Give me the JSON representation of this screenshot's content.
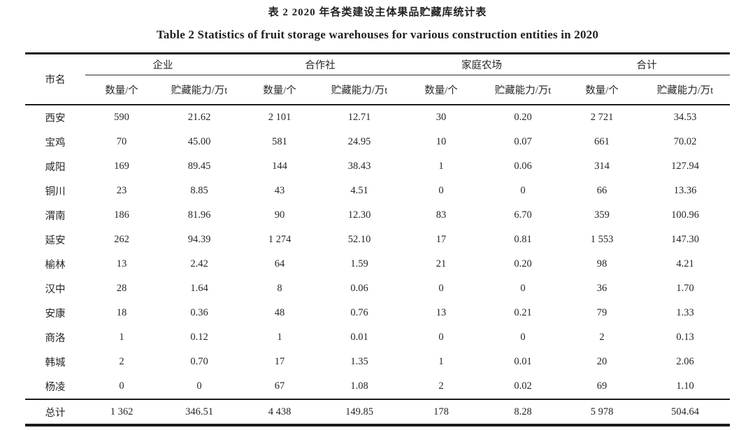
{
  "page": {
    "title_zh": "表 2 2020 年各类建设主体果品贮藏库统计表",
    "title_en": "Table 2 Statistics of fruit storage warehouses for various construction entities in 2020"
  },
  "table": {
    "city_header": "市名",
    "groups": [
      {
        "label": "企业"
      },
      {
        "label": "合作社"
      },
      {
        "label": "家庭农场"
      },
      {
        "label": "合计"
      }
    ],
    "sub_headers": [
      "数量/个",
      "贮藏能力/万t"
    ],
    "rows": [
      {
        "city": "西安",
        "values": [
          "590",
          "21.62",
          "2 101",
          "12.71",
          "30",
          "0.20",
          "2 721",
          "34.53"
        ]
      },
      {
        "city": "宝鸡",
        "values": [
          "70",
          "45.00",
          "581",
          "24.95",
          "10",
          "0.07",
          "661",
          "70.02"
        ]
      },
      {
        "city": "咸阳",
        "values": [
          "169",
          "89.45",
          "144",
          "38.43",
          "1",
          "0.06",
          "314",
          "127.94"
        ]
      },
      {
        "city": "铜川",
        "values": [
          "23",
          "8.85",
          "43",
          "4.51",
          "0",
          "0",
          "66",
          "13.36"
        ]
      },
      {
        "city": "渭南",
        "values": [
          "186",
          "81.96",
          "90",
          "12.30",
          "83",
          "6.70",
          "359",
          "100.96"
        ]
      },
      {
        "city": "延安",
        "values": [
          "262",
          "94.39",
          "1 274",
          "52.10",
          "17",
          "0.81",
          "1 553",
          "147.30"
        ]
      },
      {
        "city": "榆林",
        "values": [
          "13",
          "2.42",
          "64",
          "1.59",
          "21",
          "0.20",
          "98",
          "4.21"
        ]
      },
      {
        "city": "汉中",
        "values": [
          "28",
          "1.64",
          "8",
          "0.06",
          "0",
          "0",
          "36",
          "1.70"
        ]
      },
      {
        "city": "安康",
        "values": [
          "18",
          "0.36",
          "48",
          "0.76",
          "13",
          "0.21",
          "79",
          "1.33"
        ]
      },
      {
        "city": "商洛",
        "values": [
          "1",
          "0.12",
          "1",
          "0.01",
          "0",
          "0",
          "2",
          "0.13"
        ]
      },
      {
        "city": "韩城",
        "values": [
          "2",
          "0.70",
          "17",
          "1.35",
          "1",
          "0.01",
          "20",
          "2.06"
        ]
      },
      {
        "city": "杨凌",
        "values": [
          "0",
          "0",
          "67",
          "1.08",
          "2",
          "0.02",
          "69",
          "1.10"
        ]
      }
    ],
    "total_row": {
      "city": "总计",
      "values": [
        "1 362",
        "346.51",
        "4 438",
        "149.85",
        "178",
        "8.28",
        "5 978",
        "504.64"
      ]
    }
  }
}
